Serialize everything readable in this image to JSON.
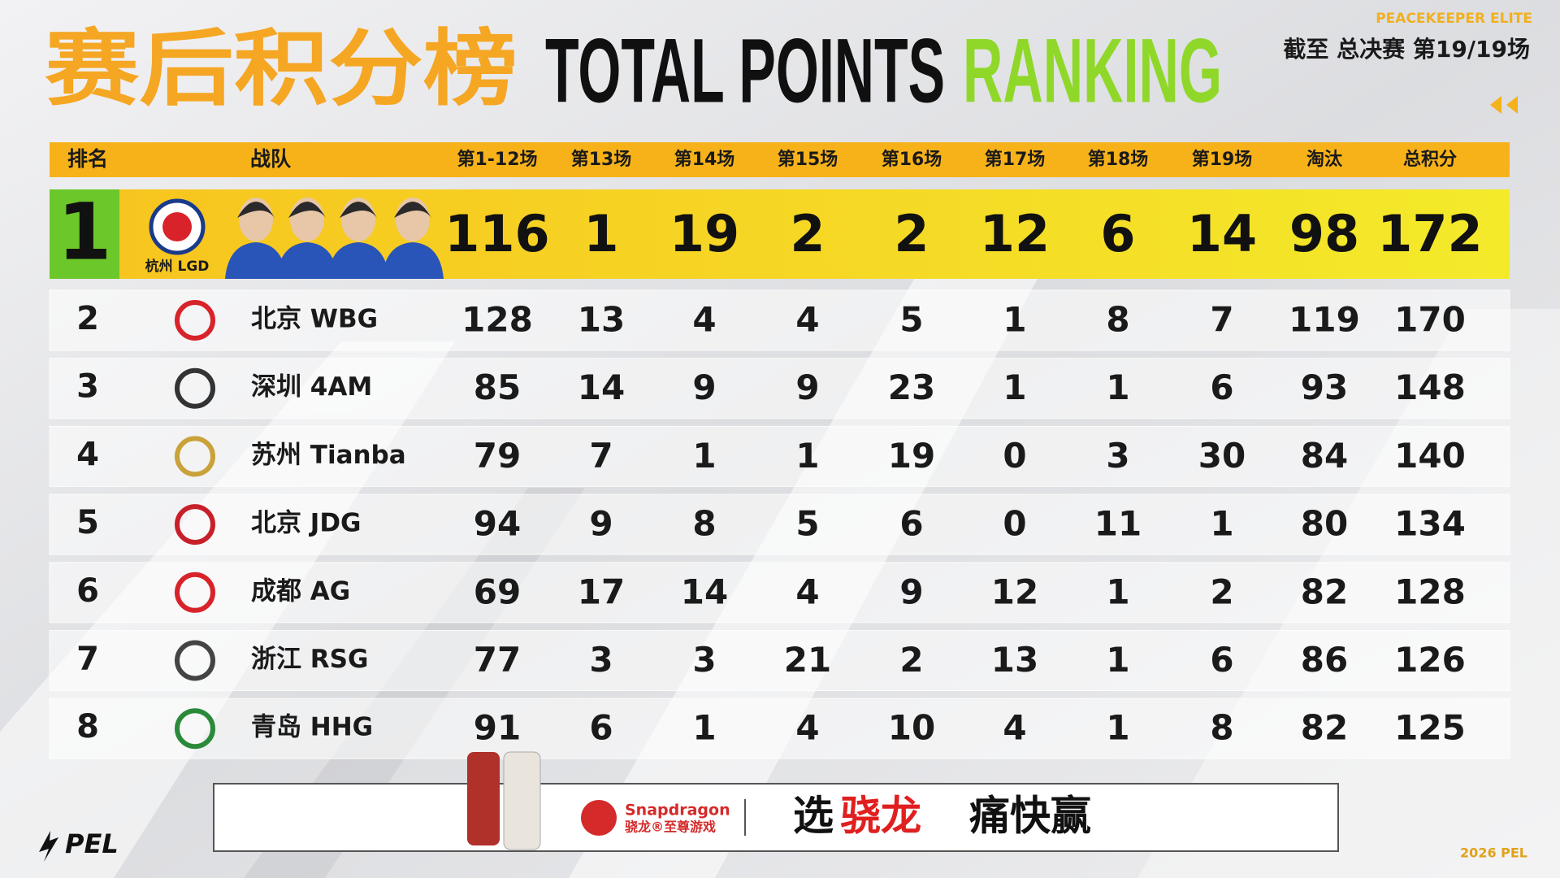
{
  "header": {
    "title_cn": "赛后积分榜",
    "title_en_1": "TOTAL POINTS",
    "title_en_2": "RANKING",
    "brand": "PEACEKEEPER ELITE",
    "status": "截至 总决赛 第19/19场"
  },
  "table": {
    "columns": [
      "排名",
      "战队",
      "第1-12场",
      "第13场",
      "第14场",
      "第15场",
      "第16场",
      "第17场",
      "第18场",
      "第19场",
      "淘汰",
      "总积分"
    ],
    "rows": [
      [
        1,
        "杭州 LGD",
        116,
        1,
        19,
        2,
        2,
        12,
        6,
        14,
        98,
        172
      ],
      [
        2,
        "北京 WBG",
        128,
        13,
        4,
        4,
        5,
        1,
        8,
        7,
        119,
        170
      ],
      [
        3,
        "深圳 4AM",
        85,
        14,
        9,
        9,
        23,
        1,
        1,
        6,
        93,
        148
      ],
      [
        4,
        "苏州 Tianba",
        79,
        7,
        1,
        1,
        19,
        0,
        3,
        30,
        84,
        140
      ],
      [
        5,
        "北京 JDG",
        94,
        9,
        8,
        5,
        6,
        0,
        11,
        1,
        80,
        134
      ],
      [
        6,
        "成都 AG",
        69,
        17,
        14,
        4,
        9,
        12,
        1,
        2,
        82,
        128
      ],
      [
        7,
        "浙江 RSG",
        77,
        3,
        3,
        21,
        2,
        13,
        1,
        6,
        86,
        126
      ],
      [
        8,
        "青岛 HHG",
        91,
        6,
        1,
        4,
        10,
        4,
        1,
        8,
        82,
        125
      ]
    ]
  },
  "sponsor": {
    "brand": "Snapdragon",
    "brand_cn": "骁龙®至尊游戏",
    "slogan_1": "选",
    "slogan_2": "骁龙",
    "slogan_3": "痛快赢"
  },
  "footer": {
    "logo": "PEL",
    "year": "2026 PEL"
  }
}
